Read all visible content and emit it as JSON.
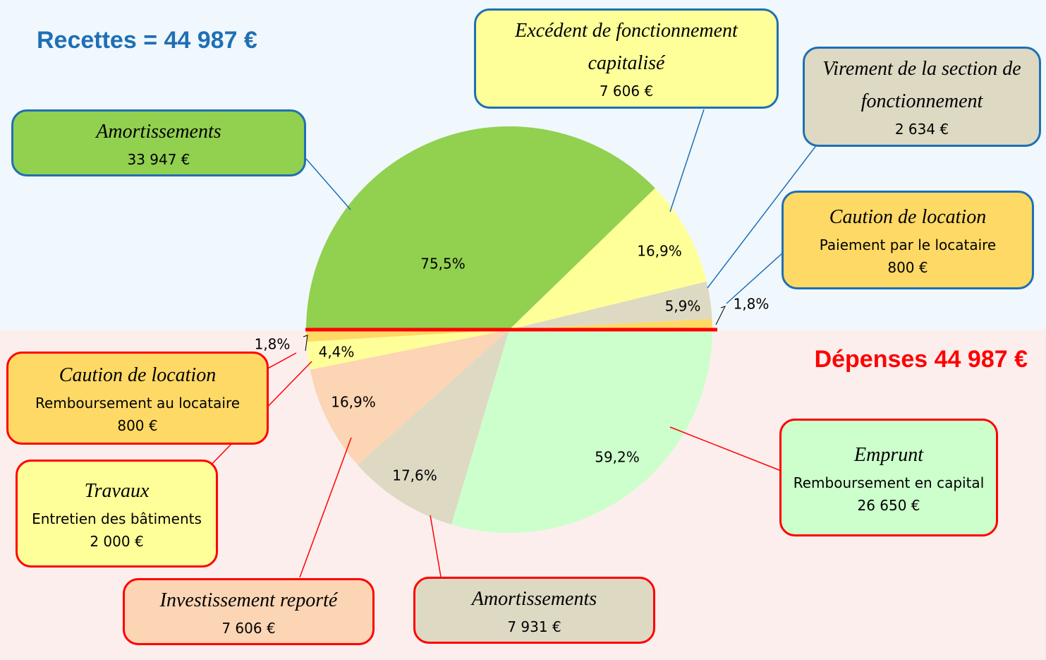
{
  "chart_data": [
    {
      "type": "semi-pie",
      "title": "Recettes = 44 987 €",
      "categories": [
        "Amortissements",
        "Excédent de fonctionnement capitalisé",
        "Virement de la section de fonctionnement",
        "Caution de location"
      ],
      "details": [
        null,
        null,
        null,
        "Paiement par le locataire"
      ],
      "amounts": [
        "33 947 €",
        "7 606 €",
        "2 634 €",
        "800 €"
      ],
      "values": [
        75.5,
        16.9,
        5.9,
        1.8
      ],
      "value_labels": [
        "75,5%",
        "16,9%",
        "5,9%",
        "1,8%"
      ],
      "colors": [
        "#92d050",
        "#ffff99",
        "#ddd9c3",
        "#ffd966"
      ],
      "border_color": "#1f6fb5",
      "title_color": "#1f6fb5"
    },
    {
      "type": "semi-pie",
      "title": "Dépenses 44 987 €",
      "categories": [
        "Emprunt",
        "Amortissements",
        "Investissement reporté",
        "Travaux",
        "Caution de location"
      ],
      "details": [
        "Remboursement en capital",
        null,
        null,
        "Entretien des bâtiments",
        "Remboursement au locataire"
      ],
      "amounts": [
        "26 650 €",
        "7 931 €",
        "7 606 €",
        "2 000 €",
        "800 €"
      ],
      "values": [
        59.2,
        17.6,
        16.9,
        4.4,
        1.8
      ],
      "value_labels": [
        "59,2%",
        "17,6%",
        "16,9%",
        "4,4%",
        "1,8%"
      ],
      "colors": [
        "#ccffcc",
        "#ddd9c3",
        "#fcd5b4",
        "#ffff99",
        "#ffd966"
      ],
      "border_color": "#ff0000",
      "title_color": "#ff0000"
    }
  ]
}
